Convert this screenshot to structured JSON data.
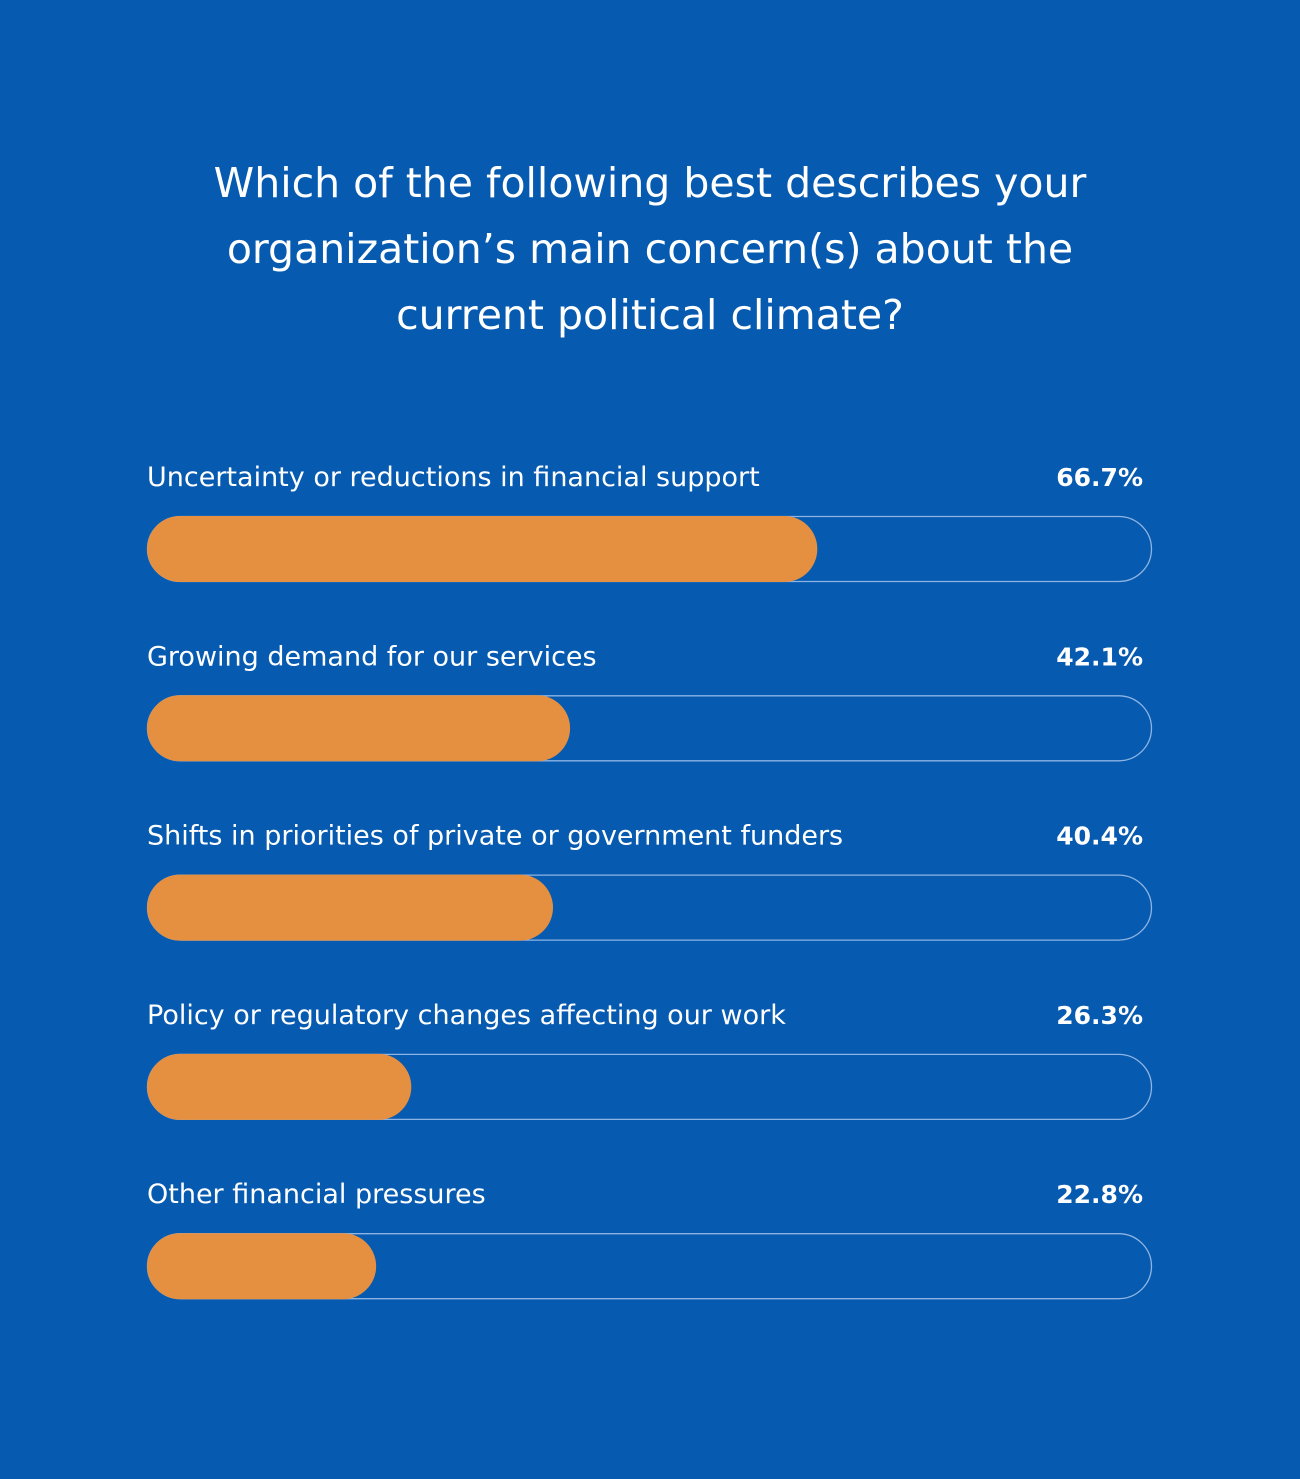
{
  "colors": {
    "background": "#065AB0",
    "bar_fill": "#E58F41",
    "track_outline": "#8EB4E3",
    "text": "#FFFFFF"
  },
  "title_lines": [
    "Which of the following best describes your",
    "organization’s main concern(s) about the",
    "current political climate?"
  ],
  "chart_data": {
    "type": "bar",
    "orientation": "horizontal",
    "title": "Which of the following best describes your organization’s main concern(s) about the current political climate?",
    "xlabel": "",
    "ylabel": "",
    "xlim": [
      0,
      100
    ],
    "unit": "%",
    "grid": false,
    "legend": "none",
    "categories": [
      "Uncertainty or reductions in financial support",
      "Growing demand for our services",
      "Shifts in priorities of private or government funders",
      "Policy or regulatory changes affecting our work",
      "Other financial pressures"
    ],
    "values": [
      66.7,
      42.1,
      40.4,
      26.3,
      22.8
    ],
    "value_labels": [
      "66.7%",
      "42.1%",
      "40.4%",
      "26.3%",
      "22.8%"
    ]
  }
}
